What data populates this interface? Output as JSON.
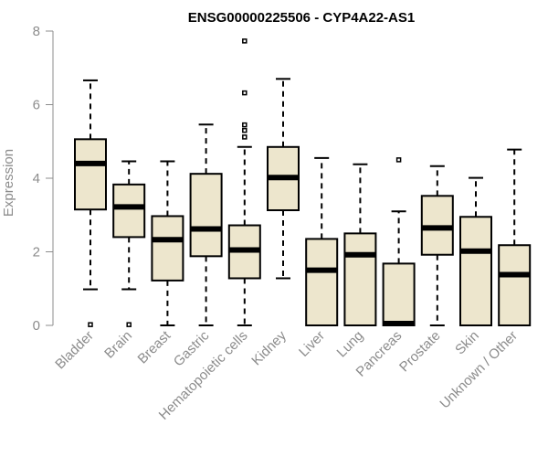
{
  "chart_data": {
    "type": "boxplot",
    "title": "ENSG00000225506 - CYP4A22-AS1",
    "xlabel": "",
    "ylabel": "Expression",
    "ylim": [
      0,
      8
    ],
    "yticks": [
      0,
      2,
      4,
      6,
      8
    ],
    "box_color": "#ede6cd",
    "categories": [
      "Bladder",
      "Brain",
      "Breast",
      "Gastric",
      "Hematopoietic cells",
      "Kidney",
      "Liver",
      "Lung",
      "Pancreas",
      "Prostate",
      "Skin",
      "Unknown / Other"
    ],
    "boxes": [
      {
        "name": "Bladder",
        "whisker_low": 0.98,
        "q1": 3.15,
        "median": 4.4,
        "q3": 5.06,
        "whisker_high": 6.66,
        "outliers": [
          0.02
        ]
      },
      {
        "name": "Brain",
        "whisker_low": 0.98,
        "q1": 2.4,
        "median": 3.22,
        "q3": 3.83,
        "whisker_high": 4.46,
        "outliers": [
          0.02
        ]
      },
      {
        "name": "Breast",
        "whisker_low": 0.0,
        "q1": 1.22,
        "median": 2.33,
        "q3": 2.97,
        "whisker_high": 4.46,
        "outliers": []
      },
      {
        "name": "Gastric",
        "whisker_low": 0.0,
        "q1": 1.88,
        "median": 2.62,
        "q3": 4.12,
        "whisker_high": 5.46,
        "outliers": []
      },
      {
        "name": "Hematopoietic cells",
        "whisker_low": 0.0,
        "q1": 1.28,
        "median": 2.05,
        "q3": 2.72,
        "whisker_high": 4.85,
        "outliers": [
          5.12,
          5.3,
          5.45,
          6.32,
          7.73
        ]
      },
      {
        "name": "Kidney",
        "whisker_low": 1.28,
        "q1": 3.13,
        "median": 4.02,
        "q3": 4.85,
        "whisker_high": 6.7,
        "outliers": []
      },
      {
        "name": "Liver",
        "whisker_low": 0.0,
        "q1": 0.0,
        "median": 1.5,
        "q3": 2.35,
        "whisker_high": 4.55,
        "outliers": []
      },
      {
        "name": "Lung",
        "whisker_low": 0.0,
        "q1": 0.0,
        "median": 1.92,
        "q3": 2.5,
        "whisker_high": 4.38,
        "outliers": []
      },
      {
        "name": "Pancreas",
        "whisker_low": 0.0,
        "q1": 0.0,
        "median": 0.05,
        "q3": 1.68,
        "whisker_high": 3.1,
        "outliers": [
          4.5
        ]
      },
      {
        "name": "Prostate",
        "whisker_low": 0.0,
        "q1": 1.92,
        "median": 2.65,
        "q3": 3.52,
        "whisker_high": 4.33,
        "outliers": []
      },
      {
        "name": "Skin",
        "whisker_low": 0.0,
        "q1": 0.0,
        "median": 2.02,
        "q3": 2.95,
        "whisker_high": 4.01,
        "outliers": []
      },
      {
        "name": "Unknown / Other",
        "whisker_low": 0.0,
        "q1": 0.0,
        "median": 1.38,
        "q3": 2.18,
        "whisker_high": 4.78,
        "outliers": []
      }
    ]
  }
}
